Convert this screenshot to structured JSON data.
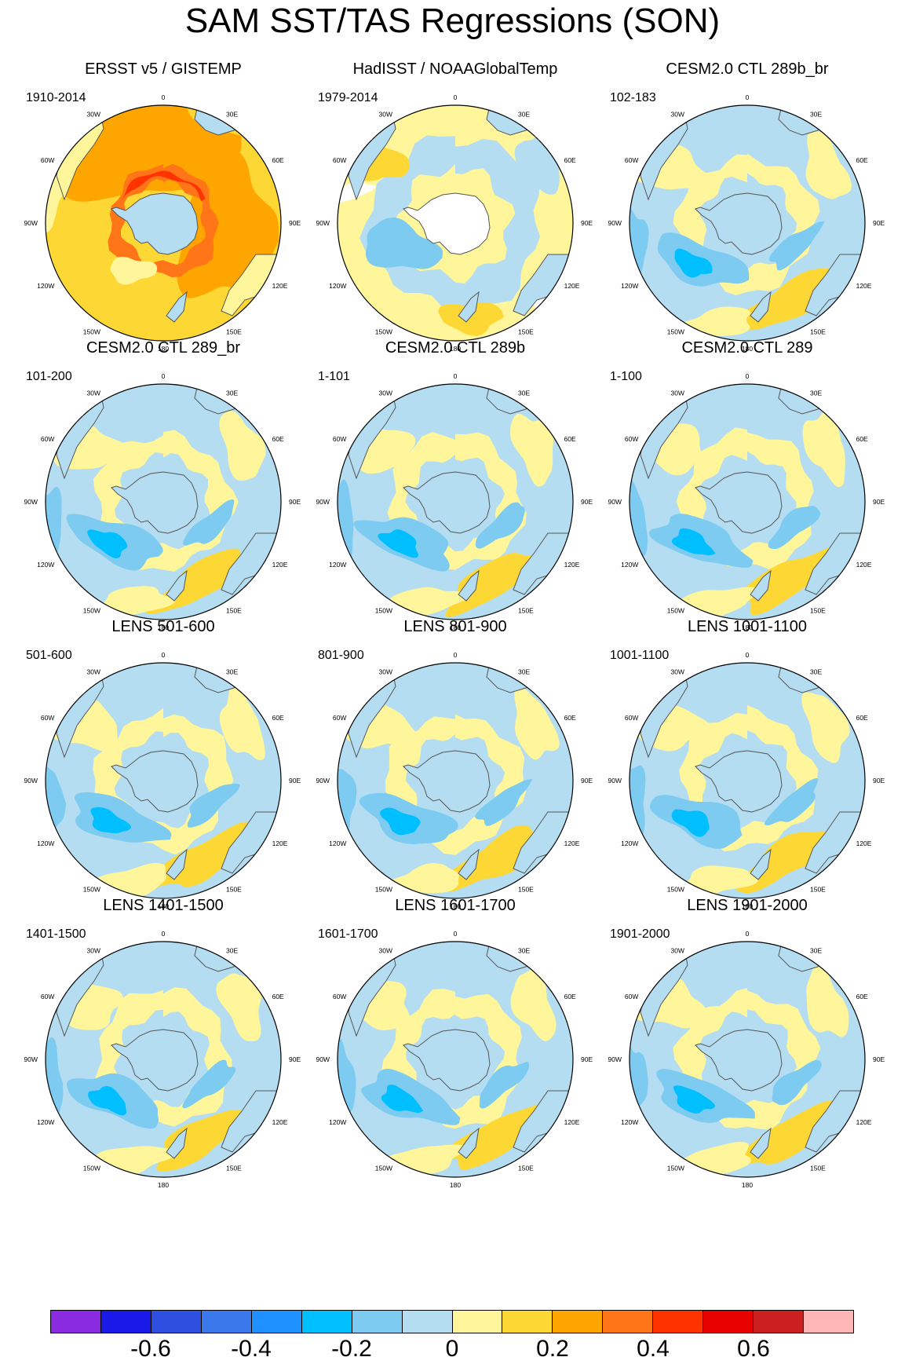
{
  "title": "SAM SST/TAS Regressions (SON)",
  "longitude_labels": [
    "0",
    "30E",
    "60E",
    "90E",
    "120E",
    "150E",
    "180",
    "150W",
    "120W",
    "90W",
    "60W",
    "30W"
  ],
  "palette": {
    "land": "#b5ddf1",
    "coast": "#555555",
    "outline": "#000000"
  },
  "panels": [
    {
      "id": "ersst",
      "title": "ERSST v5 / GISTEMP",
      "years": "1910-2014",
      "style": "warm"
    },
    {
      "id": "hadisst",
      "title": "HadISST / NOAAGlobalTemp",
      "years": "1979-2014",
      "style": "hadisst"
    },
    {
      "id": "cesm-289b-br",
      "title": "CESM2.0 CTL 289b_br",
      "years": "102-183",
      "style": "model"
    },
    {
      "id": "cesm-289-br",
      "title": "CESM2.0 CTL 289_br",
      "years": "101-200",
      "style": "model"
    },
    {
      "id": "cesm-289b",
      "title": "CESM2.0 CTL 289b",
      "years": "1-101",
      "style": "model"
    },
    {
      "id": "cesm-289",
      "title": "CESM2.0 CTL 289",
      "years": "1-100",
      "style": "model"
    },
    {
      "id": "lens-501",
      "title": "LENS 501-600",
      "years": "501-600",
      "style": "model"
    },
    {
      "id": "lens-801",
      "title": "LENS 801-900",
      "years": "801-900",
      "style": "model"
    },
    {
      "id": "lens-1001",
      "title": "LENS 1001-1100",
      "years": "1001-1100",
      "style": "model"
    },
    {
      "id": "lens-1401",
      "title": "LENS 1401-1500",
      "years": "1401-1500",
      "style": "model"
    },
    {
      "id": "lens-1601",
      "title": "LENS 1601-1700",
      "years": "1601-1700",
      "style": "model"
    },
    {
      "id": "lens-1901",
      "title": "LENS 1901-2000",
      "years": "1901-2000",
      "style": "model"
    }
  ],
  "colorbar": {
    "colors": [
      "#8a2be2",
      "#1a1ae8",
      "#2f4fe0",
      "#3b78eb",
      "#1e90ff",
      "#00bfff",
      "#7ecbf2",
      "#b5ddf1",
      "#fff59a",
      "#fdd835",
      "#ffa500",
      "#ff7518",
      "#ff3300",
      "#e60000",
      "#cc1f1f",
      "#ffb6b6"
    ],
    "tick_labels": [
      "-0.6",
      "-0.4",
      "-0.2",
      "0",
      "0.2",
      "0.4",
      "0.6"
    ]
  },
  "chart_data": {
    "type": "heatmap",
    "title": "SAM SST/TAS Regressions (SON)",
    "projection": "south-polar-stereographic",
    "longitude_labels": [
      "0",
      "30E",
      "60E",
      "90E",
      "120E",
      "150E",
      "180",
      "150W",
      "120W",
      "90W",
      "60W",
      "30W"
    ],
    "colorbar_ticks": [
      -0.6,
      -0.4,
      -0.2,
      0,
      0.2,
      0.4,
      0.6
    ],
    "panels": [
      {
        "title": "ERSST v5 / GISTEMP",
        "period": "1910-2014"
      },
      {
        "title": "HadISST / NOAAGlobalTemp",
        "period": "1979-2014"
      },
      {
        "title": "CESM2.0 CTL 289b_br",
        "period": "102-183"
      },
      {
        "title": "CESM2.0 CTL 289_br",
        "period": "101-200"
      },
      {
        "title": "CESM2.0 CTL 289b",
        "period": "1-101"
      },
      {
        "title": "CESM2.0 CTL 289",
        "period": "1-100"
      },
      {
        "title": "LENS 501-600",
        "period": "501-600"
      },
      {
        "title": "LENS 801-900",
        "period": "801-900"
      },
      {
        "title": "LENS 1001-1100",
        "period": "1001-1100"
      },
      {
        "title": "LENS 1401-1500",
        "period": "1401-1500"
      },
      {
        "title": "LENS 1601-1700",
        "period": "1601-1700"
      },
      {
        "title": "LENS 1901-2000",
        "period": "1901-2000"
      }
    ]
  }
}
